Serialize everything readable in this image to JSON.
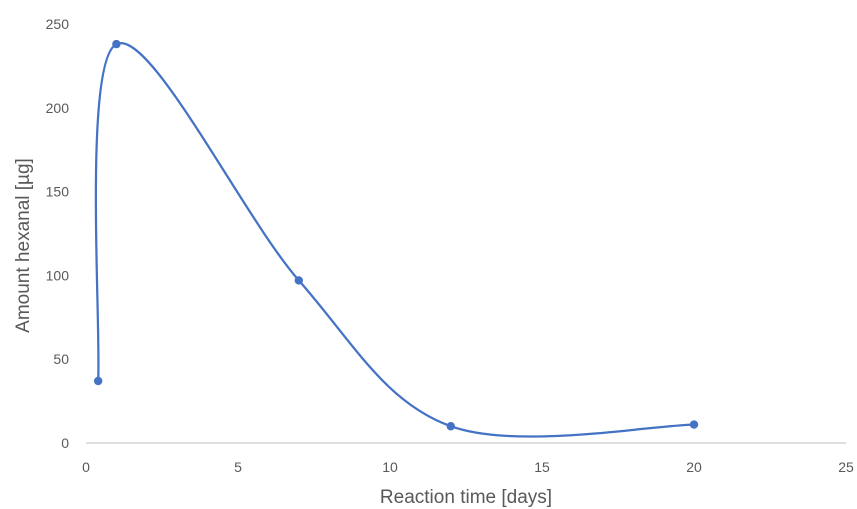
{
  "chart_data": {
    "type": "scatter",
    "title": "",
    "xlabel": "Reaction time [days]",
    "ylabel": "Amount hexanal [µg]",
    "xlim": [
      0,
      25
    ],
    "ylim": [
      0,
      250
    ],
    "xticks": [
      "0",
      "5",
      "10",
      "15",
      "20",
      "25"
    ],
    "yticks": [
      "0",
      "50",
      "100",
      "150",
      "200",
      "250"
    ],
    "grid": false,
    "legend": "none",
    "line_style": "smooth",
    "series": [
      {
        "color": "#4472C4",
        "points": [
          {
            "x": 0.4,
            "y": 37
          },
          {
            "x": 1,
            "y": 238
          },
          {
            "x": 7,
            "y": 97
          },
          {
            "x": 12,
            "y": 10
          },
          {
            "x": 20,
            "y": 11
          }
        ]
      }
    ]
  },
  "colors": {
    "axis": "#bfbfbf",
    "text": "#595959",
    "series": "#4472C4"
  }
}
